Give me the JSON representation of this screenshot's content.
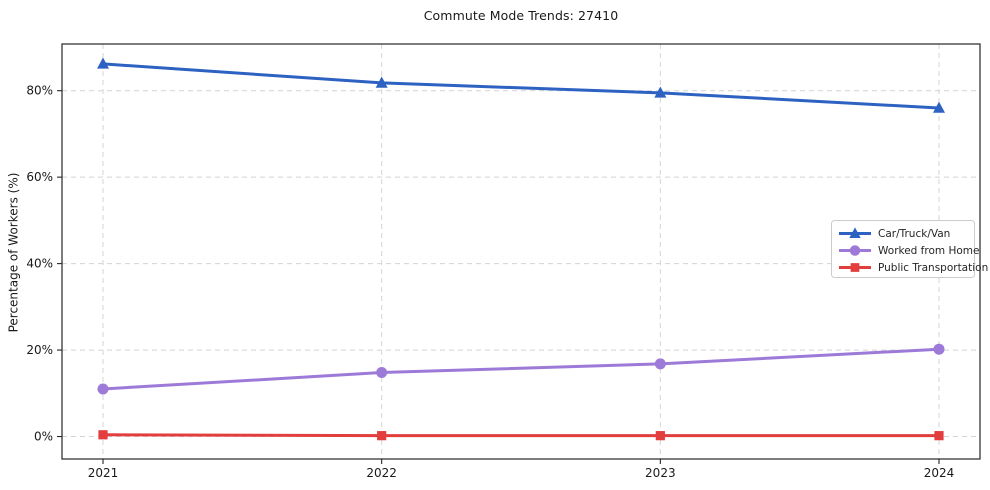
{
  "chart_data": {
    "type": "line",
    "title": "Commute Mode Trends: 27410",
    "ylabel": "Percentage of Workers (%)",
    "xlabel": "",
    "categories": [
      "2021",
      "2022",
      "2023",
      "2024"
    ],
    "series": [
      {
        "name": "Car/Truck/Van",
        "color": "#2d62c2",
        "marker": "triangle",
        "values": [
          86.2,
          81.8,
          79.5,
          76.0
        ]
      },
      {
        "name": "Worked from Home",
        "color": "#9d7ad8",
        "marker": "circle",
        "values": [
          11.0,
          14.8,
          16.8,
          20.2
        ]
      },
      {
        "name": "Public Transportation",
        "color": "#e23e3e",
        "marker": "square",
        "values": [
          0.4,
          0.2,
          0.2,
          0.2
        ]
      }
    ],
    "yticks": [
      {
        "label": "0%",
        "value": 0
      },
      {
        "label": "20%",
        "value": 20
      },
      {
        "label": "40%",
        "value": 40
      },
      {
        "label": "60%",
        "value": 60
      },
      {
        "label": "80%",
        "value": 80
      }
    ],
    "ylim": [
      -5.2,
      90.8
    ],
    "grid": "dashed",
    "legend_position": "center-right",
    "colors": {
      "background": "#ffffff",
      "gridline": "#d4d4d4",
      "spine": "#262626",
      "tick_text": "#1a1a1a",
      "legend_border": "#cccccc"
    }
  }
}
